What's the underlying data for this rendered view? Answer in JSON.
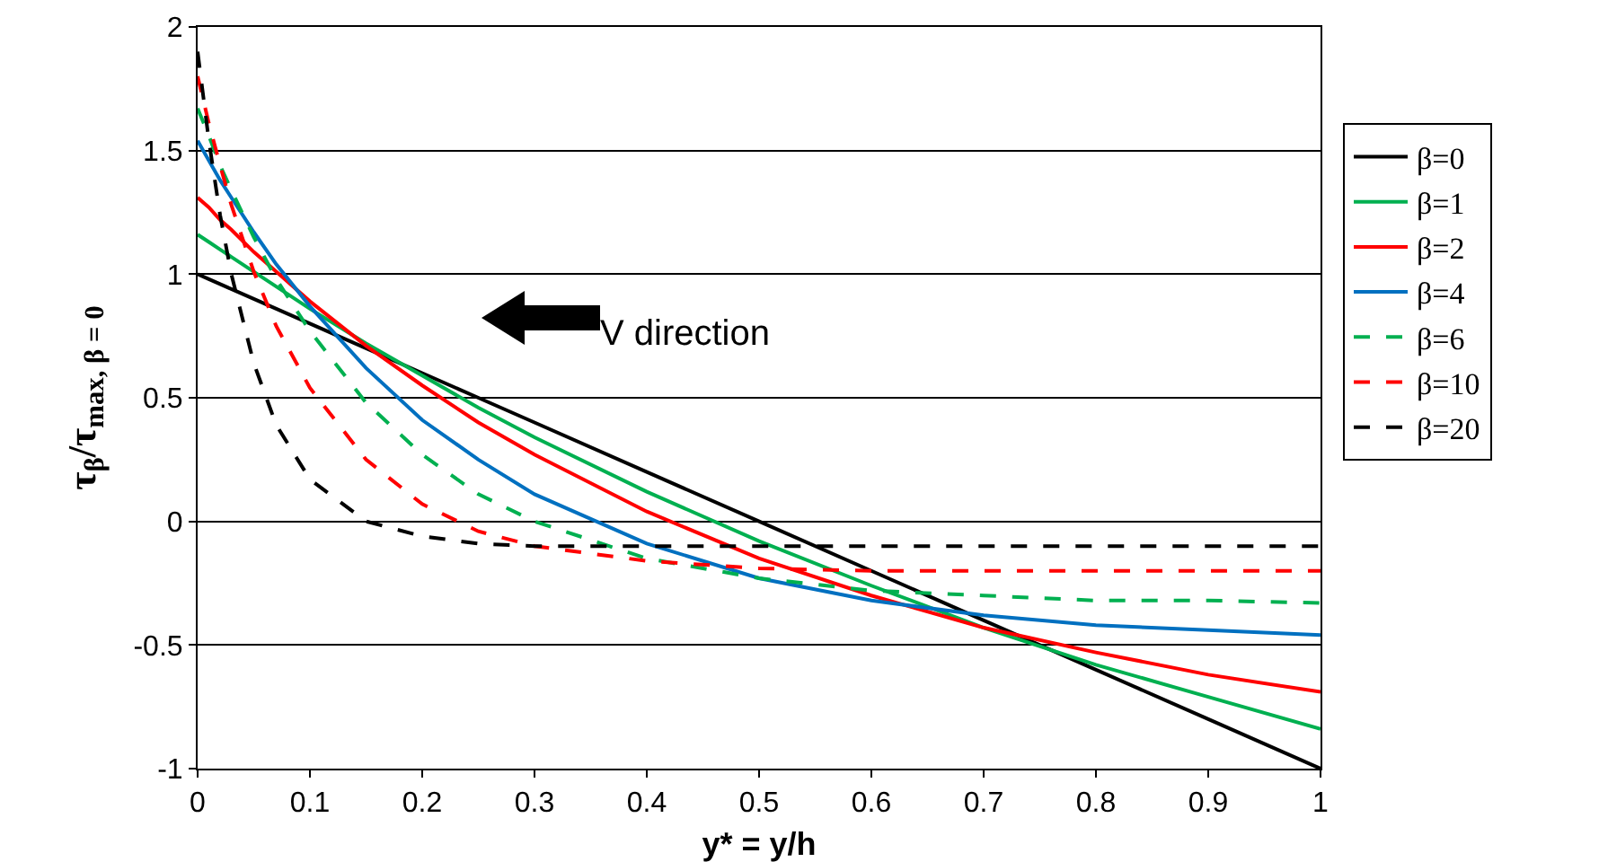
{
  "chart_data": {
    "type": "line",
    "xlabel": "y* = y/h",
    "ylabel": "τ$_{β}$/τ$_{max, β = 0}$",
    "x": [
      0,
      0.01,
      0.02,
      0.03,
      0.05,
      0.07,
      0.1,
      0.15,
      0.2,
      0.25,
      0.3,
      0.4,
      0.5,
      0.6,
      0.7,
      0.8,
      0.9,
      1
    ],
    "series": [
      {
        "name": "β=0",
        "color": "#000000",
        "line_style": "solid",
        "values": [
          1,
          0.98,
          0.96,
          0.94,
          0.9,
          0.86,
          0.8,
          0.7,
          0.6,
          0.5,
          0.4,
          0.2,
          0,
          -0.2,
          -0.4,
          -0.6,
          -0.8,
          -1
        ]
      },
      {
        "name": "β=1",
        "color": "#00b050",
        "line_style": "solid",
        "values": [
          1.16,
          1.13,
          1.1,
          1.07,
          1.01,
          0.95,
          0.86,
          0.72,
          0.59,
          0.46,
          0.34,
          0.12,
          -0.08,
          -0.26,
          -0.43,
          -0.58,
          -0.71,
          -0.84
        ]
      },
      {
        "name": "β=2",
        "color": "#ff0000",
        "line_style": "solid",
        "values": [
          1.31,
          1.27,
          1.22,
          1.18,
          1.09,
          1.01,
          0.89,
          0.71,
          0.55,
          0.4,
          0.27,
          0.04,
          -0.15,
          -0.3,
          -0.43,
          -0.53,
          -0.62,
          -0.69
        ]
      },
      {
        "name": "β=4",
        "color": "#0070c0",
        "line_style": "solid",
        "values": [
          1.54,
          1.46,
          1.38,
          1.31,
          1.17,
          1.04,
          0.87,
          0.62,
          0.41,
          0.25,
          0.11,
          -0.09,
          -0.23,
          -0.32,
          -0.38,
          -0.42,
          -0.44,
          -0.46
        ]
      },
      {
        "name": "β=6",
        "color": "#00b050",
        "line_style": "dashed",
        "values": [
          1.67,
          1.56,
          1.44,
          1.34,
          1.15,
          0.98,
          0.77,
          0.48,
          0.27,
          0.11,
          0,
          -0.15,
          -0.23,
          -0.28,
          -0.3,
          -0.32,
          -0.32,
          -0.33
        ]
      },
      {
        "name": "β=10",
        "color": "#ff0000",
        "line_style": "dashed",
        "values": [
          1.8,
          1.61,
          1.44,
          1.28,
          1.01,
          0.79,
          0.54,
          0.25,
          0.07,
          -0.04,
          -0.1,
          -0.16,
          -0.19,
          -0.2,
          -0.2,
          -0.2,
          -0.2,
          -0.2
        ]
      },
      {
        "name": "β=20",
        "color": "#000000",
        "line_style": "dashed",
        "values": [
          1.9,
          1.54,
          1.24,
          1,
          0.64,
          0.39,
          0.17,
          0,
          -0.06,
          -0.09,
          -0.1,
          -0.1,
          -0.1,
          -0.1,
          -0.1,
          -0.1,
          -0.1,
          -0.1
        ]
      }
    ],
    "xlim": [
      0,
      1
    ],
    "xticks": [
      0,
      0.1,
      0.2,
      0.3,
      0.4,
      0.5,
      0.6,
      0.7,
      0.8,
      0.9,
      1
    ],
    "ylim": [
      -1,
      2
    ],
    "yticks": [
      -1,
      -0.5,
      0,
      0.5,
      1,
      1.5,
      2
    ],
    "grid": "y",
    "legend": "right",
    "marker": "none",
    "annotations": [
      "V direction"
    ]
  }
}
